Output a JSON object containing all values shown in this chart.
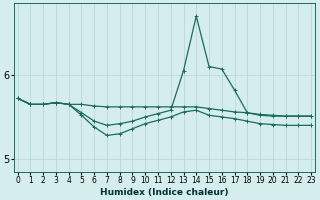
{
  "xlabel": "Humidex (Indice chaleur)",
  "bg_color": "#d5eeed",
  "grid_color": "#b8d8d6",
  "line_color": "#1a6b5a",
  "x_ticks": [
    0,
    1,
    2,
    3,
    4,
    5,
    6,
    7,
    8,
    9,
    10,
    11,
    12,
    13,
    14,
    15,
    16,
    17,
    18,
    19,
    20,
    21,
    22,
    23
  ],
  "y_ticks": [
    5,
    6
  ],
  "ylim": [
    4.85,
    6.85
  ],
  "xlim": [
    -0.3,
    23.3
  ],
  "line1_y": [
    5.72,
    5.65,
    5.65,
    5.67,
    5.65,
    5.65,
    5.63,
    5.62,
    5.62,
    5.62,
    5.62,
    5.62,
    5.62,
    5.62,
    5.62,
    5.6,
    5.58,
    5.56,
    5.55,
    5.53,
    5.52,
    5.51,
    5.51,
    5.51
  ],
  "line2_y": [
    5.72,
    5.65,
    5.65,
    5.67,
    5.65,
    5.55,
    5.45,
    5.4,
    5.42,
    5.45,
    5.5,
    5.54,
    5.58,
    6.05,
    6.7,
    6.1,
    6.07,
    5.82,
    5.55,
    5.52,
    5.51,
    5.51,
    5.51,
    5.51
  ],
  "line3_y": [
    5.72,
    5.65,
    5.65,
    5.67,
    5.65,
    5.52,
    5.38,
    5.28,
    5.3,
    5.36,
    5.42,
    5.46,
    5.5,
    5.56,
    5.58,
    5.52,
    5.5,
    5.48,
    5.45,
    5.42,
    5.41,
    5.4,
    5.4,
    5.4
  ]
}
